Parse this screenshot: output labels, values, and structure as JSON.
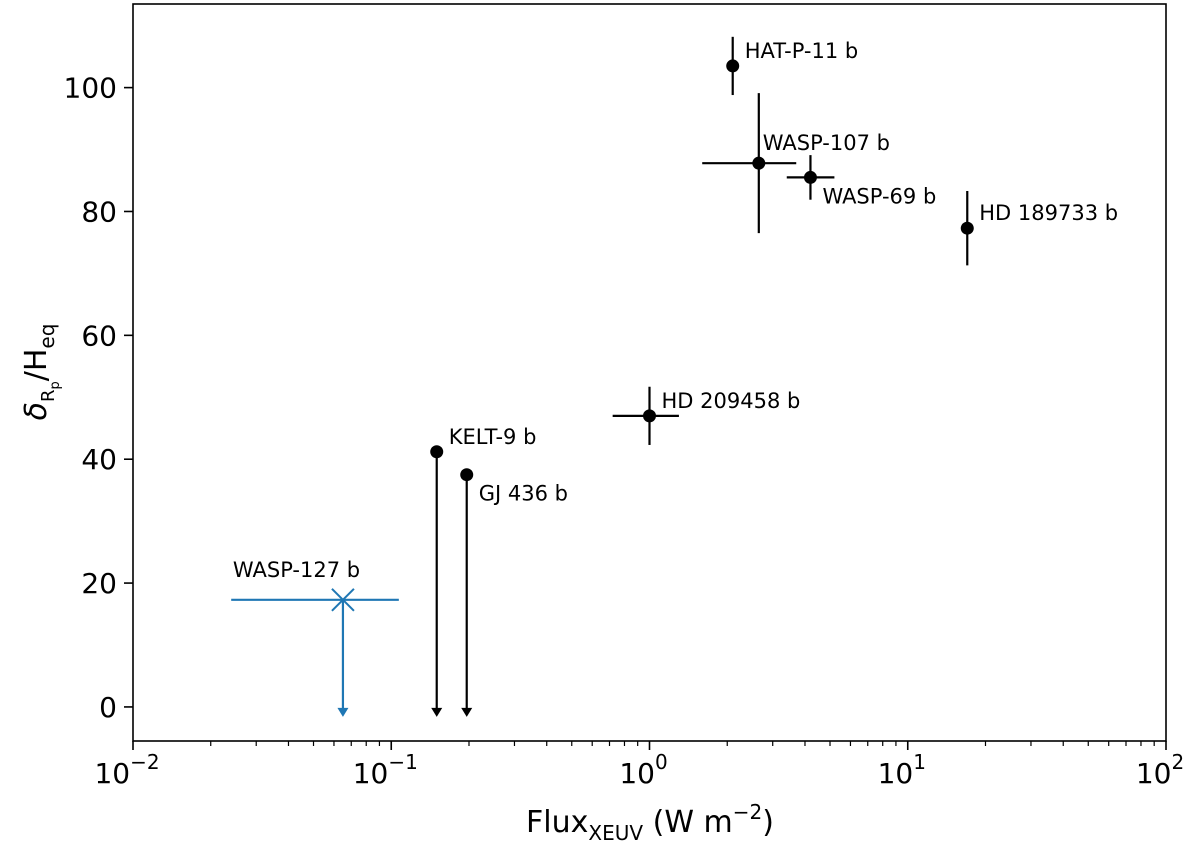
{
  "chart_data": {
    "type": "scatter",
    "x_scale": "log",
    "xlim": [
      0.01,
      100
    ],
    "ylim": [
      -5.5,
      113.5
    ],
    "grid": false,
    "xlabel": {
      "main": "Flux",
      "sub": "XEUV",
      "units": " (W m",
      "sup": "−2",
      "close": ")"
    },
    "ylabel": {
      "main": "δ",
      "sub": "R",
      "subsub": "p",
      "rest": "/H",
      "rest_sub": "eq"
    },
    "x_ticks": [
      {
        "value": 0.01,
        "base": "10",
        "exp": "−2"
      },
      {
        "value": 0.1,
        "base": "10",
        "exp": "−1"
      },
      {
        "value": 1,
        "base": "10",
        "exp": "0"
      },
      {
        "value": 10,
        "base": "10",
        "exp": "1"
      },
      {
        "value": 100,
        "base": "10",
        "exp": "2"
      }
    ],
    "y_ticks": [
      {
        "value": 0,
        "label": "0"
      },
      {
        "value": 20,
        "label": "20"
      },
      {
        "value": 40,
        "label": "40"
      },
      {
        "value": 60,
        "label": "60"
      },
      {
        "value": 80,
        "label": "80"
      },
      {
        "value": 100,
        "label": "100"
      }
    ],
    "points": [
      {
        "name": "HAT-P-11 b",
        "x": 2.1,
        "y": 103.5,
        "y_err": [
          4.7,
          4.7
        ],
        "x_err": null,
        "upper_limit": false,
        "color": "#000000",
        "marker": "circle",
        "label_pos": "upper-right"
      },
      {
        "name": "WASP-107 b",
        "x": 2.65,
        "y": 87.8,
        "y_err": [
          11.3,
          11.3
        ],
        "x_err": [
          1.05,
          1.05
        ],
        "upper_limit": false,
        "color": "#000000",
        "marker": "circle",
        "label_pos": "above-right"
      },
      {
        "name": "WASP-69 b",
        "x": 4.2,
        "y": 85.5,
        "y_err": [
          3.6,
          3.6
        ],
        "x_err": [
          0.8,
          1.0
        ],
        "upper_limit": false,
        "color": "#000000",
        "marker": "circle",
        "label_pos": "below-right"
      },
      {
        "name": "HD 189733 b",
        "x": 17.0,
        "y": 77.3,
        "y_err": [
          6.0,
          6.0
        ],
        "x_err": null,
        "upper_limit": false,
        "color": "#000000",
        "marker": "circle",
        "label_pos": "upper-right"
      },
      {
        "name": "HD 209458 b",
        "x": 1.0,
        "y": 47.0,
        "y_err": [
          4.7,
          4.7
        ],
        "x_err": [
          0.28,
          0.3
        ],
        "upper_limit": false,
        "color": "#000000",
        "marker": "circle",
        "label_pos": "upper-right"
      },
      {
        "name": "KELT-9 b",
        "x": 0.15,
        "y": 41.2,
        "y_err": null,
        "x_err": null,
        "upper_limit": true,
        "color": "#000000",
        "marker": "circle",
        "label_pos": "upper-right"
      },
      {
        "name": "GJ 436 b",
        "x": 0.196,
        "y": 37.5,
        "y_err": null,
        "x_err": null,
        "upper_limit": true,
        "color": "#000000",
        "marker": "circle",
        "label_pos": "below-right"
      },
      {
        "name": "WASP-127 b",
        "x": 0.065,
        "y": 17.3,
        "y_err": null,
        "x_err": [
          0.041,
          0.042
        ],
        "upper_limit": true,
        "color": "#1f77b4",
        "marker": "x",
        "label_pos": "above-left"
      }
    ]
  }
}
